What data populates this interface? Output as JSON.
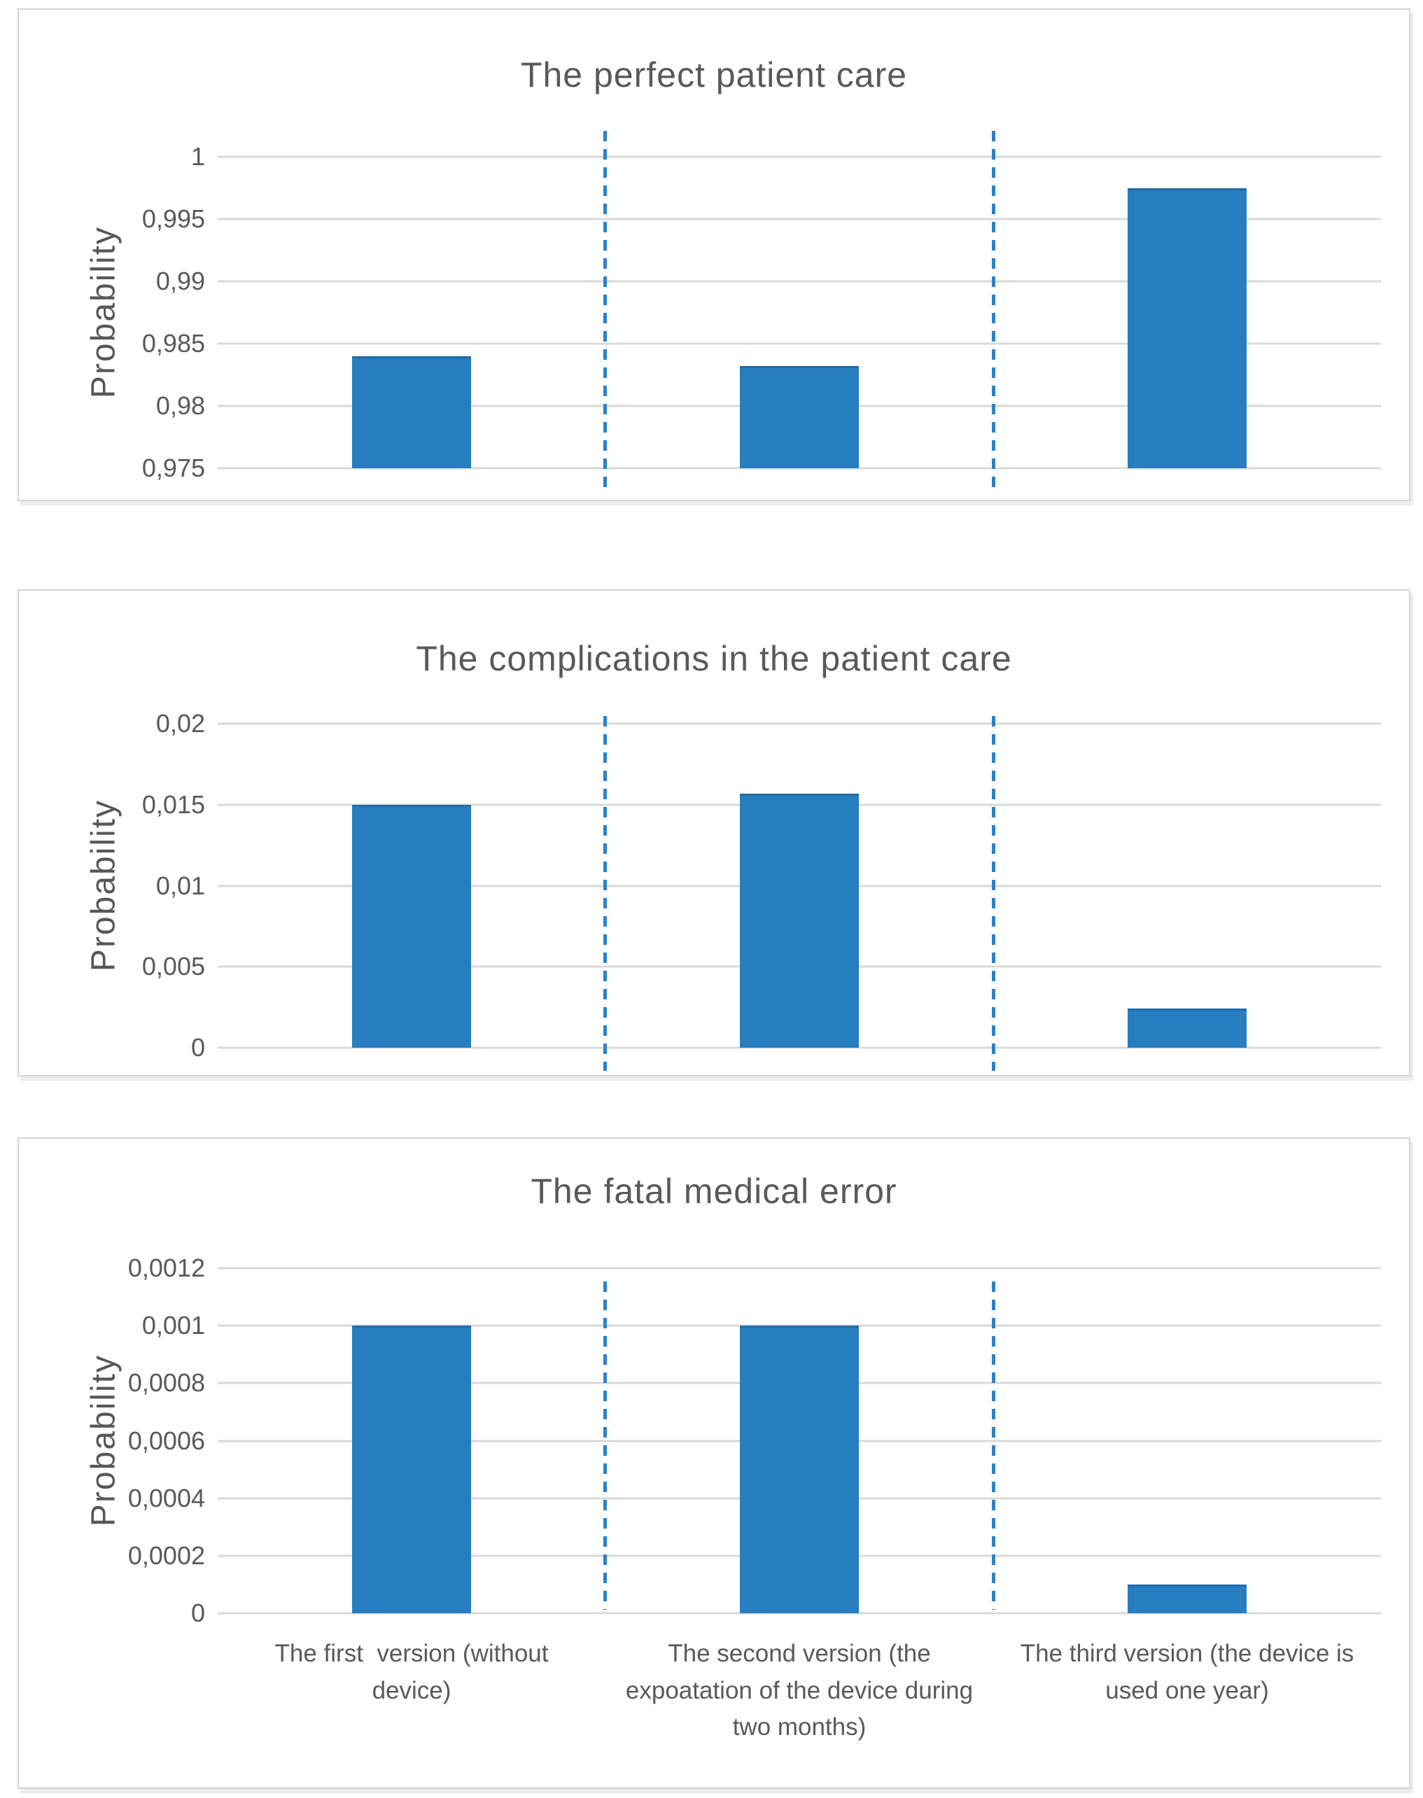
{
  "figure": {
    "background": "#ffffff",
    "panel_count": 3
  },
  "colors": {
    "bar": "#267ec0",
    "separator_dash": "#2b82c8",
    "gridline": "#d9d9d9",
    "text": "#595959",
    "panel_border": "#d4d4d4"
  },
  "categories": [
    "The first  version (without device)",
    "The second version (the expoatation of the device during two months)",
    "The third version (the device is used one year)"
  ],
  "chart_data": [
    {
      "type": "bar",
      "title": "The perfect patient care",
      "ylabel": "Probability",
      "ylim": [
        0.975,
        1
      ],
      "yticks": [
        1,
        0.995,
        0.99,
        0.985,
        0.98,
        0.975
      ],
      "ytick_labels": [
        "1",
        "0,995",
        "0,99",
        "0,985",
        "0,98",
        "0,975"
      ],
      "values": [
        0.984,
        0.9832,
        0.9975
      ],
      "grid": true,
      "legend": false,
      "show_x_labels": false,
      "separators_between_categories": true
    },
    {
      "type": "bar",
      "title": "The complications in the patient care",
      "ylabel": "Probability",
      "ylim": [
        0,
        0.02
      ],
      "yticks": [
        0.02,
        0.015,
        0.01,
        0.005,
        0
      ],
      "ytick_labels": [
        "0,02",
        "0,015",
        "0,01",
        "0,005",
        "0"
      ],
      "values": [
        0.015,
        0.0157,
        0.0024
      ],
      "grid": true,
      "legend": false,
      "show_x_labels": false,
      "separators_between_categories": true
    },
    {
      "type": "bar",
      "title": "The fatal medical error",
      "ylabel": "Probability",
      "ylim": [
        0,
        0.0012
      ],
      "yticks": [
        0.0012,
        0.001,
        0.0008,
        0.0006,
        0.0004,
        0.0002,
        0
      ],
      "ytick_labels": [
        "0,0012",
        "0,001",
        "0,0008",
        "0,0006",
        "0,0004",
        "0,0002",
        "0"
      ],
      "values": [
        0.001,
        0.001,
        0.0001
      ],
      "grid": true,
      "legend": false,
      "show_x_labels": true,
      "separators_between_categories": true
    }
  ]
}
